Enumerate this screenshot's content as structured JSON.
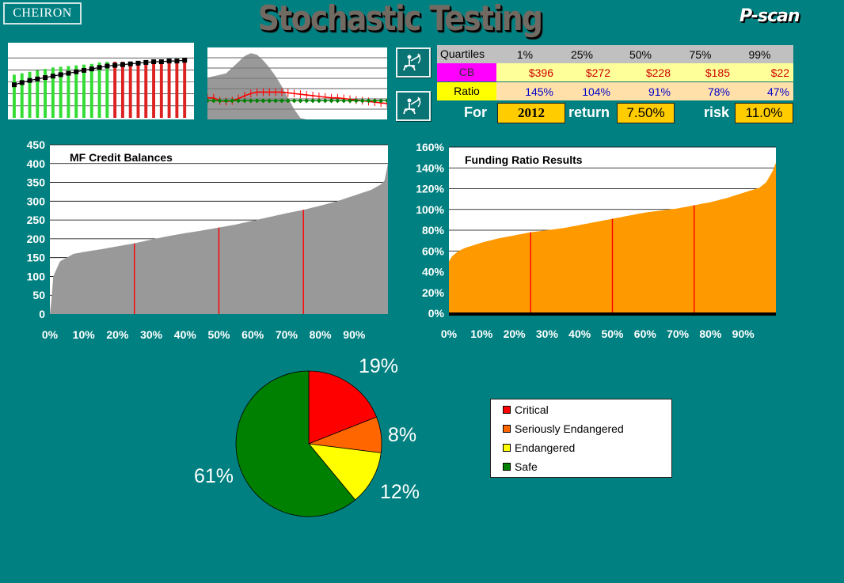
{
  "header": {
    "logo_text": "CHEIRON",
    "title": "Stochastic Testing",
    "brand": "P-scan"
  },
  "quartile_table": {
    "header": [
      "Quartiles",
      "1%",
      "25%",
      "50%",
      "75%",
      "99%"
    ],
    "cb": {
      "label": "CB",
      "values": [
        "$396",
        "$272",
        "$228",
        "$185",
        "$22"
      ]
    },
    "ratio": {
      "label": "Ratio",
      "values": [
        "145%",
        "104%",
        "91%",
        "78%",
        "47%"
      ]
    }
  },
  "params": {
    "for_label": "For",
    "year": "2012",
    "return_label": "return",
    "return_value": "7.50%",
    "risk_label": "risk",
    "risk_value": "11.0%"
  },
  "icons": {
    "archer_1": "archer-icon",
    "archer_2": "archer-icon"
  },
  "colors": {
    "background": "#008080",
    "gray_fill": "#999999",
    "orange_fill": "#ff9900",
    "marker_line": "#ff0000",
    "critical": "#ff0000",
    "seriously_endangered": "#ff6600",
    "endangered": "#ffff00",
    "safe": "#008000",
    "table_accent": "#ffcc00"
  },
  "chart_data": [
    {
      "type": "bar",
      "title": "",
      "series": [
        {
          "values": [
            0.6,
            0.62,
            0.64,
            0.66,
            0.68,
            0.7,
            0.71,
            0.72,
            0.73,
            0.74,
            0.75,
            0.77,
            0.78,
            0.78,
            0.78,
            0.78,
            0.78,
            0.78,
            0.78,
            0.78,
            0.78,
            0.78,
            0.78
          ]
        },
        {
          "values": [
            0.46,
            0.49,
            0.52,
            0.54,
            0.56,
            0.58,
            0.6,
            0.62,
            0.64,
            0.66,
            0.68,
            0.7,
            0.72,
            0.73,
            0.74,
            0.75,
            0.76,
            0.77,
            0.78,
            0.78,
            0.79,
            0.79,
            0.8
          ]
        }
      ],
      "split_index": 13,
      "ylim": [
        0,
        1
      ]
    },
    {
      "type": "area",
      "title": "",
      "series": [
        {
          "values": [
            0.58,
            0.6,
            0.62,
            0.64,
            0.72,
            0.8,
            0.88,
            0.92,
            0.9,
            0.82,
            0.72,
            0.6,
            0.46,
            0.3,
            0.14,
            0.02,
            0,
            0,
            0,
            0,
            0,
            0,
            0,
            0,
            0,
            0,
            0,
            0,
            0,
            0
          ]
        },
        {
          "values": [
            0.3,
            0.3,
            0.26,
            0.25,
            0.26,
            0.29,
            0.33,
            0.36,
            0.38,
            0.38,
            0.38,
            0.38,
            0.38,
            0.37,
            0.36,
            0.35,
            0.34,
            0.33,
            0.32,
            0.31,
            0.3,
            0.3,
            0.29,
            0.28,
            0.27,
            0.26,
            0.25,
            0.24,
            0.23,
            0.22
          ]
        },
        {
          "values": [
            0.26,
            0.26,
            0.26,
            0.26,
            0.26,
            0.26,
            0.26,
            0.26,
            0.26,
            0.26,
            0.26,
            0.26,
            0.26,
            0.26,
            0.26,
            0.26,
            0.26,
            0.26,
            0.26,
            0.26,
            0.26,
            0.26,
            0.26,
            0.26,
            0.26,
            0.26,
            0.26,
            0.26,
            0.26,
            0.26
          ]
        }
      ],
      "ylim": [
        0,
        1
      ]
    },
    {
      "type": "area",
      "title": "MF Credit Balances",
      "x": [
        0,
        0.5,
        1,
        2,
        3,
        5,
        7,
        10,
        15,
        20,
        25,
        30,
        35,
        40,
        45,
        50,
        55,
        60,
        65,
        70,
        75,
        80,
        85,
        90,
        95,
        98,
        99,
        100
      ],
      "values": [
        0,
        40,
        100,
        120,
        140,
        150,
        160,
        165,
        172,
        180,
        188,
        198,
        207,
        215,
        222,
        230,
        238,
        248,
        258,
        268,
        277,
        288,
        300,
        315,
        330,
        345,
        355,
        400
      ],
      "xticks": [
        "0%",
        "10%",
        "20%",
        "30%",
        "40%",
        "50%",
        "60%",
        "70%",
        "80%",
        "90%"
      ],
      "yticks": [
        "0",
        "50",
        "100",
        "150",
        "200",
        "250",
        "300",
        "350",
        "400",
        "450"
      ],
      "ylim": [
        0,
        450
      ],
      "quartile_markers": [
        25,
        50,
        75
      ],
      "grid": true
    },
    {
      "type": "area",
      "title": "Funding Ratio Results",
      "x": [
        0,
        1,
        3,
        5,
        10,
        15,
        20,
        25,
        30,
        35,
        40,
        45,
        50,
        55,
        60,
        65,
        70,
        75,
        80,
        85,
        90,
        95,
        97,
        99,
        100
      ],
      "values": [
        0.5,
        0.55,
        0.6,
        0.63,
        0.68,
        0.72,
        0.75,
        0.78,
        0.8,
        0.82,
        0.85,
        0.88,
        0.91,
        0.94,
        0.97,
        0.99,
        1.01,
        1.04,
        1.07,
        1.11,
        1.16,
        1.21,
        1.26,
        1.37,
        1.45
      ],
      "xticks": [
        "0%",
        "10%",
        "20%",
        "30%",
        "40%",
        "50%",
        "60%",
        "70%",
        "80%",
        "90%"
      ],
      "yticks": [
        "0%",
        "20%",
        "40%",
        "60%",
        "80%",
        "100%",
        "120%",
        "140%",
        "160%"
      ],
      "ylim": [
        0,
        1.6
      ],
      "quartile_markers": [
        25,
        50,
        75
      ],
      "grid": true
    },
    {
      "type": "pie",
      "title": "",
      "slices": [
        {
          "name": "Critical",
          "value": 19,
          "label": "19%"
        },
        {
          "name": "Seriously Endangered",
          "value": 8,
          "label": "8%"
        },
        {
          "name": "Endangered",
          "value": 12,
          "label": "12%"
        },
        {
          "name": "Safe",
          "value": 61,
          "label": "61%"
        }
      ],
      "legend": "right"
    }
  ]
}
